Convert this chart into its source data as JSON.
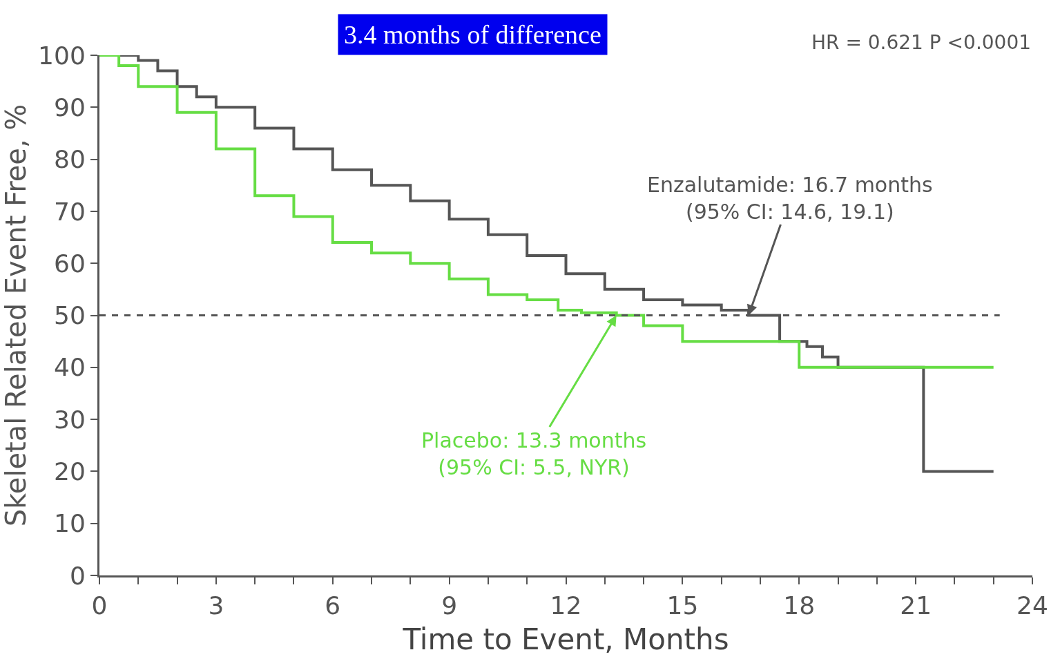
{
  "chart_data": {
    "type": "step",
    "title": "3.4 months of difference",
    "xlabel": "Time to Event, Months",
    "ylabel": "Skeletal Related Event Free, %",
    "series": [
      {
        "color": "#555555",
        "x": [
          0,
          1,
          1.5,
          2,
          2.5,
          3,
          4,
          5,
          6,
          7,
          8,
          9,
          10,
          11,
          12,
          13,
          14,
          15,
          16,
          16.7,
          17.3,
          17.5,
          18.2,
          18.6,
          19,
          21.2,
          23
        ],
        "values": [
          100,
          99,
          97,
          94,
          92,
          90,
          86,
          82,
          78,
          75,
          72,
          68.5,
          65.5,
          61.5,
          58,
          55,
          53,
          52,
          51,
          50,
          50,
          45,
          44,
          42,
          40,
          20,
          20
        ]
      },
      {
        "color": "#66dd44",
        "x": [
          0,
          0.5,
          1,
          2,
          3,
          4,
          5,
          6,
          7,
          8,
          9,
          10,
          11,
          11.8,
          12.4,
          13.3,
          14,
          15,
          18,
          23
        ],
        "values": [
          100,
          98,
          94,
          89,
          82,
          73,
          69,
          64,
          62,
          60,
          57,
          54,
          53,
          51,
          50.5,
          50,
          48,
          45,
          40,
          40
        ]
      }
    ],
    "xlim": [
      0,
      24
    ],
    "ylim": [
      0,
      100
    ],
    "xticks": [
      0,
      {
        "value": 1,
        "label": null
      },
      {
        "value": 2,
        "label": null
      },
      3,
      {
        "value": 4,
        "label": null
      },
      {
        "value": 5,
        "label": null
      },
      6,
      {
        "value": 7,
        "label": null
      },
      {
        "value": 8,
        "label": null
      },
      9,
      {
        "value": 10,
        "label": null
      },
      {
        "value": 11,
        "label": null
      },
      12,
      {
        "value": 13,
        "label": null
      },
      {
        "value": 14,
        "label": null
      },
      15,
      {
        "value": 16,
        "label": null
      },
      {
        "value": 17,
        "label": null
      },
      18,
      {
        "value": 19,
        "label": null
      },
      {
        "value": 20,
        "label": null
      },
      21,
      {
        "value": 22,
        "label": null
      },
      {
        "value": 23,
        "label": null
      },
      24
    ],
    "yticks": [
      0,
      10,
      20,
      30,
      40,
      50,
      60,
      70,
      80,
      90,
      100
    ],
    "ref_lines": [
      {
        "axis": "y",
        "value": 50,
        "color": "#555555",
        "line_style": "dashed"
      }
    ],
    "annotations": [
      "HR = 0.621 P <0.0001",
      {
        "text": "Enzalutamide: 16.7 months\n(95% CI: 14.6, 19.1)",
        "x": 16.7,
        "y": 50
      },
      {
        "text": "Placebo: 13.3 months\n(95% CI: 5.5, NYR)",
        "x": 13.3,
        "y": 50
      }
    ],
    "marker": "none"
  }
}
